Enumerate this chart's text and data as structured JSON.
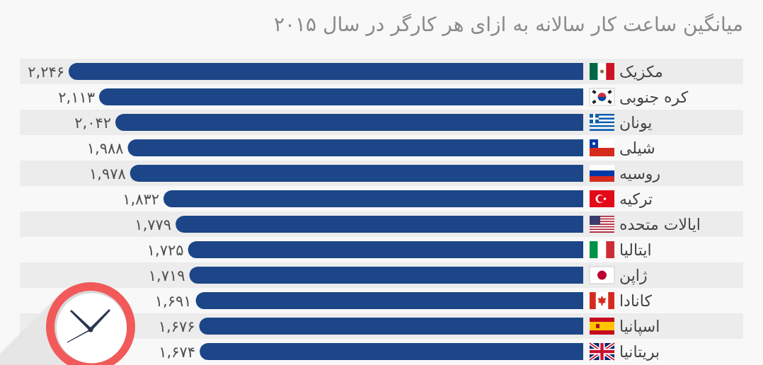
{
  "chart_data": {
    "type": "bar",
    "orientation": "horizontal",
    "title": "میانگین ساعت کار سالانه به ازای هر کارگر در سال ۲۰۱۵",
    "categories": [
      "مکزیک",
      "کره جنوبی",
      "یونان",
      "شیلی",
      "روسیه",
      "ترکیه",
      "ایالات متحده",
      "ایتالیا",
      "ژاپن",
      "کانادا",
      "اسپانیا",
      "بریتانیا"
    ],
    "values": [
      2246,
      2113,
      2042,
      1988,
      1978,
      1832,
      1779,
      1725,
      1719,
      1691,
      1676,
      1674
    ],
    "value_labels": [
      "۲,۲۴۶",
      "۲,۱۱۳",
      "۲,۰۴۲",
      "۱,۹۸۸",
      "۱,۹۷۸",
      "۱,۸۳۲",
      "۱,۷۷۹",
      "۱,۷۲۵",
      "۱,۷۱۹",
      "۱,۶۹۱",
      "۱,۶۷۶",
      "۱,۶۷۴"
    ],
    "color": "#1c4687"
  }
}
